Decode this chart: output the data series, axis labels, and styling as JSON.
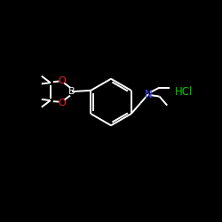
{
  "background_color": "#000000",
  "bond_color": "#ffffff",
  "N_color": "#4040ff",
  "O_color": "#ff2020",
  "B_color": "#ffffff",
  "HCl_color": "#00cc00",
  "label_N": "N",
  "label_B": "B",
  "label_HCl": "HCl",
  "figsize": [
    2.5,
    2.5
  ],
  "dpi": 100,
  "bond_lw": 1.4
}
